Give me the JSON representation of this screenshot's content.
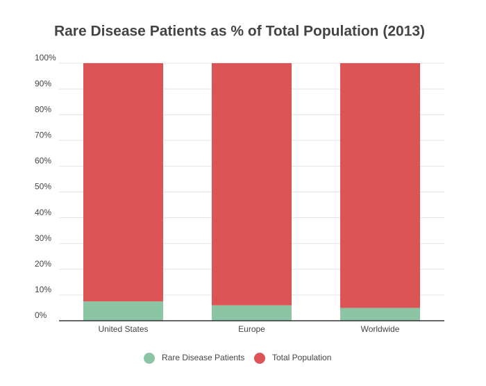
{
  "chart_data": {
    "type": "stacked-bar",
    "title": "Rare Disease Patients as % of Total Population (2013)",
    "categories": [
      "United States",
      "Europe",
      "Worldwide"
    ],
    "series": [
      {
        "name": "Rare Disease Patients",
        "color": "#8cc5a3",
        "values": [
          7.5,
          6,
          5
        ]
      },
      {
        "name": "Total Population",
        "color": "#dc5456",
        "values": [
          92.5,
          94,
          95
        ]
      }
    ],
    "ylim": [
      0,
      100
    ],
    "yticks": [
      {
        "value": 0,
        "label": "0%"
      },
      {
        "value": 10,
        "label": "10%"
      },
      {
        "value": 20,
        "label": "20%"
      },
      {
        "value": 30,
        "label": "30%"
      },
      {
        "value": 40,
        "label": "40%"
      },
      {
        "value": 50,
        "label": "50%"
      },
      {
        "value": 60,
        "label": "60%"
      },
      {
        "value": 70,
        "label": "70%"
      },
      {
        "value": 80,
        "label": "80%"
      },
      {
        "value": 90,
        "label": "90%"
      },
      {
        "value": 100,
        "label": "100%"
      }
    ],
    "grid": true
  }
}
